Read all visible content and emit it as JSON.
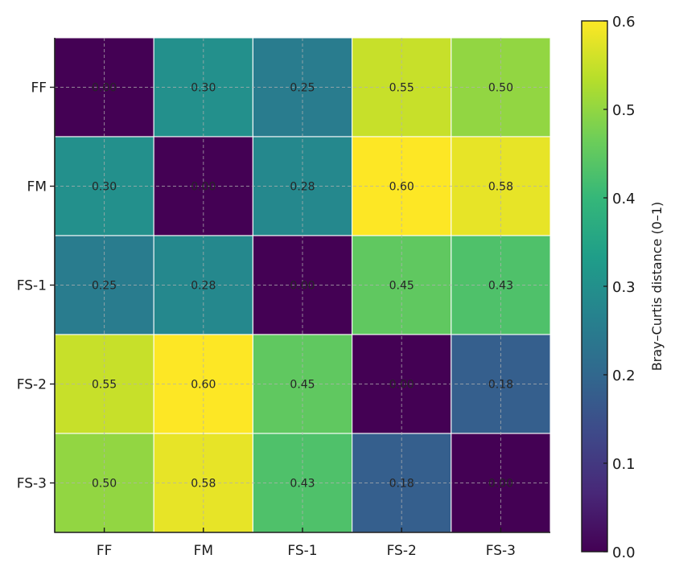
{
  "chart_data": {
    "type": "heatmap",
    "title": "",
    "xlabel": "",
    "ylabel": "",
    "x_categories": [
      "FF",
      "FM",
      "FS-1",
      "FS-2",
      "FS-3"
    ],
    "y_categories": [
      "FF",
      "FM",
      "FS-1",
      "FS-2",
      "FS-3"
    ],
    "values": [
      [
        0.0,
        0.3,
        0.25,
        0.55,
        0.5
      ],
      [
        0.3,
        0.0,
        0.28,
        0.6,
        0.58
      ],
      [
        0.25,
        0.28,
        0.0,
        0.45,
        0.43
      ],
      [
        0.55,
        0.6,
        0.45,
        0.0,
        0.18
      ],
      [
        0.5,
        0.58,
        0.43,
        0.18,
        0.0
      ]
    ],
    "value_format": "0.00",
    "colormap": "viridis",
    "grid": true,
    "colorbar": {
      "label": "Bray–Curtis distance (0–1)",
      "range": [
        0.0,
        0.6
      ],
      "ticks": [
        "0.0",
        "0.1",
        "0.2",
        "0.3",
        "0.4",
        "0.5",
        "0.6"
      ],
      "placement": "right"
    }
  }
}
